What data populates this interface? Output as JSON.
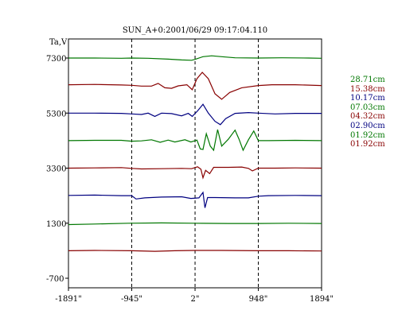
{
  "chart_data": {
    "type": "line",
    "title": "SUN_A+0:2001/06/29 09:17:04.110",
    "ylabel": "Ta,V",
    "xlabel": "",
    "x_ticks": [
      "-1891\"",
      "-945\"",
      "2\"",
      "948\"",
      "1894\""
    ],
    "x_tick_values": [
      -1891,
      -945,
      2,
      948,
      1894
    ],
    "y_ticks": [
      "7300",
      "5300",
      "3300",
      "1300",
      "-700"
    ],
    "y_tick_values": [
      7300,
      5300,
      3300,
      1300,
      -700
    ],
    "xlim": [
      -1891,
      1894
    ],
    "ylim": [
      -700,
      7300
    ],
    "grid": "dashed vertical lines at -945\", 2\", 948\"",
    "legend_position": "right",
    "legend": [
      "28.71cm",
      "15.38cm",
      "10.17cm",
      "07.03cm",
      "04.32cm",
      "02.90cm",
      "01.92cm",
      "01.92cm"
    ],
    "series": [
      {
        "name": "28.71cm",
        "color": "#007700",
        "baseline": 7300,
        "points": [
          [
            -1891,
            7300
          ],
          [
            -1500,
            7300
          ],
          [
            -1100,
            7290
          ],
          [
            -945,
            7300
          ],
          [
            -700,
            7290
          ],
          [
            -400,
            7260
          ],
          [
            -200,
            7230
          ],
          [
            -50,
            7220
          ],
          [
            2,
            7250
          ],
          [
            120,
            7350
          ],
          [
            250,
            7380
          ],
          [
            400,
            7350
          ],
          [
            600,
            7310
          ],
          [
            948,
            7300
          ],
          [
            1300,
            7310
          ],
          [
            1700,
            7300
          ],
          [
            1894,
            7290
          ]
        ]
      },
      {
        "name": "15.38cm",
        "color": "#880000",
        "baseline": 6300,
        "points": [
          [
            -1891,
            6330
          ],
          [
            -1500,
            6340
          ],
          [
            -1100,
            6320
          ],
          [
            -945,
            6310
          ],
          [
            -800,
            6280
          ],
          [
            -650,
            6280
          ],
          [
            -550,
            6380
          ],
          [
            -450,
            6220
          ],
          [
            -350,
            6200
          ],
          [
            -250,
            6290
          ],
          [
            -120,
            6330
          ],
          [
            -40,
            6150
          ],
          [
            30,
            6550
          ],
          [
            110,
            6780
          ],
          [
            200,
            6550
          ],
          [
            300,
            6000
          ],
          [
            400,
            5800
          ],
          [
            520,
            6050
          ],
          [
            700,
            6220
          ],
          [
            948,
            6300
          ],
          [
            1150,
            6330
          ],
          [
            1500,
            6330
          ],
          [
            1894,
            6300
          ]
        ]
      },
      {
        "name": "10.17cm",
        "color": "#000080",
        "baseline": 5300,
        "points": [
          [
            -1891,
            5300
          ],
          [
            -1500,
            5300
          ],
          [
            -1100,
            5290
          ],
          [
            -945,
            5270
          ],
          [
            -800,
            5250
          ],
          [
            -700,
            5300
          ],
          [
            -600,
            5180
          ],
          [
            -500,
            5300
          ],
          [
            -350,
            5280
          ],
          [
            -200,
            5200
          ],
          [
            -100,
            5290
          ],
          [
            -40,
            5180
          ],
          [
            40,
            5380
          ],
          [
            120,
            5620
          ],
          [
            200,
            5300
          ],
          [
            300,
            5000
          ],
          [
            380,
            4880
          ],
          [
            460,
            5100
          ],
          [
            600,
            5290
          ],
          [
            800,
            5320
          ],
          [
            948,
            5300
          ],
          [
            1200,
            5270
          ],
          [
            1500,
            5290
          ],
          [
            1894,
            5290
          ]
        ]
      },
      {
        "name": "07.03cm",
        "color": "#007700",
        "baseline": 4300,
        "points": [
          [
            -1891,
            4300
          ],
          [
            -1500,
            4310
          ],
          [
            -1100,
            4310
          ],
          [
            -945,
            4280
          ],
          [
            -800,
            4290
          ],
          [
            -650,
            4330
          ],
          [
            -520,
            4240
          ],
          [
            -400,
            4320
          ],
          [
            -300,
            4250
          ],
          [
            -150,
            4330
          ],
          [
            -60,
            4250
          ],
          [
            30,
            4320
          ],
          [
            80,
            4000
          ],
          [
            120,
            3980
          ],
          [
            170,
            4550
          ],
          [
            230,
            4100
          ],
          [
            280,
            3950
          ],
          [
            340,
            4700
          ],
          [
            400,
            4100
          ],
          [
            500,
            4350
          ],
          [
            600,
            4680
          ],
          [
            660,
            4350
          ],
          [
            720,
            3950
          ],
          [
            800,
            4330
          ],
          [
            880,
            4650
          ],
          [
            948,
            4300
          ],
          [
            1100,
            4300
          ],
          [
            1500,
            4310
          ],
          [
            1894,
            4300
          ]
        ]
      },
      {
        "name": "04.32cm",
        "color": "#880000",
        "baseline": 3300,
        "points": [
          [
            -1891,
            3300
          ],
          [
            -1500,
            3310
          ],
          [
            -1100,
            3320
          ],
          [
            -945,
            3290
          ],
          [
            -800,
            3270
          ],
          [
            -500,
            3280
          ],
          [
            -200,
            3290
          ],
          [
            -50,
            3280
          ],
          [
            40,
            3350
          ],
          [
            90,
            3260
          ],
          [
            120,
            2950
          ],
          [
            160,
            3220
          ],
          [
            220,
            3100
          ],
          [
            280,
            3330
          ],
          [
            500,
            3330
          ],
          [
            700,
            3340
          ],
          [
            800,
            3290
          ],
          [
            860,
            3200
          ],
          [
            948,
            3300
          ],
          [
            1200,
            3300
          ],
          [
            1500,
            3310
          ],
          [
            1894,
            3300
          ]
        ]
      },
      {
        "name": "02.90cm",
        "color": "#000080",
        "baseline": 2300,
        "points": [
          [
            -1891,
            2310
          ],
          [
            -1500,
            2320
          ],
          [
            -1100,
            2300
          ],
          [
            -945,
            2300
          ],
          [
            -880,
            2180
          ],
          [
            -750,
            2220
          ],
          [
            -500,
            2250
          ],
          [
            -200,
            2260
          ],
          [
            -60,
            2200
          ],
          [
            60,
            2220
          ],
          [
            120,
            2420
          ],
          [
            150,
            1860
          ],
          [
            190,
            2230
          ],
          [
            300,
            2230
          ],
          [
            600,
            2220
          ],
          [
            800,
            2220
          ],
          [
            948,
            2280
          ],
          [
            1100,
            2300
          ],
          [
            1500,
            2310
          ],
          [
            1894,
            2300
          ]
        ]
      },
      {
        "name": "01.92cm",
        "color": "#007700",
        "baseline": 1300,
        "points": [
          [
            -1891,
            1250
          ],
          [
            -1500,
            1270
          ],
          [
            -1000,
            1300
          ],
          [
            -500,
            1310
          ],
          [
            0,
            1300
          ],
          [
            500,
            1290
          ],
          [
            948,
            1290
          ],
          [
            1400,
            1300
          ],
          [
            1894,
            1290
          ]
        ]
      },
      {
        "name": "01.92cm",
        "color": "#880000",
        "baseline": 300,
        "points": [
          [
            -1891,
            300
          ],
          [
            -1500,
            310
          ],
          [
            -945,
            300
          ],
          [
            -600,
            280
          ],
          [
            -300,
            300
          ],
          [
            0,
            310
          ],
          [
            400,
            310
          ],
          [
            948,
            300
          ],
          [
            1400,
            300
          ],
          [
            1894,
            290
          ]
        ]
      }
    ]
  }
}
